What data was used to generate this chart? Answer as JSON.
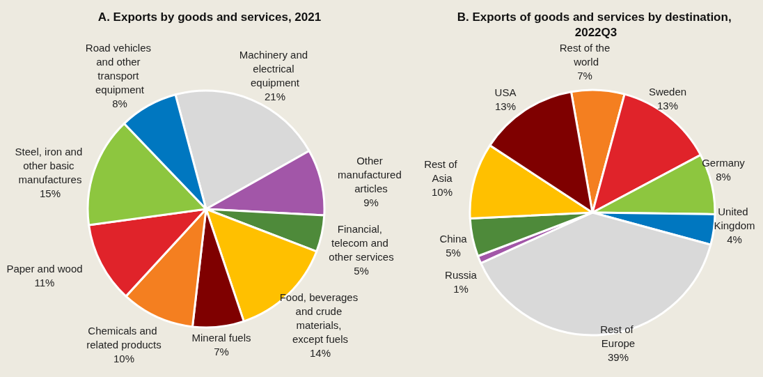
{
  "chart_data": [
    {
      "type": "pie",
      "title": "A. Exports by goods and services, 2021",
      "categories": [
        "Machinery and electrical equipment",
        "Other manufactured articles",
        "Financial, telecom and other services",
        "Food, beverages and crude materials, except fuels",
        "Mineral fuels",
        "Chemicals and related products",
        "Paper and wood",
        "Steel, iron and other basic manufactures",
        "Road vehicles and other transport equipment"
      ],
      "values": [
        21,
        9,
        5,
        14,
        7,
        10,
        11,
        15,
        8
      ],
      "value_labels": [
        "21%",
        "9%",
        "5%",
        "14%",
        "7%",
        "10%",
        "11%",
        "15%",
        "8%"
      ],
      "colors": [
        "#d9d9d9",
        "#a256a8",
        "#4e8a3a",
        "#ffc000",
        "#7f0000",
        "#f47f20",
        "#e0232a",
        "#8dc63f",
        "#0077c0"
      ],
      "legend": false
    },
    {
      "type": "pie",
      "title": "B. Exports of goods and services by destination, 2022Q3",
      "categories": [
        "Rest of the world",
        "Sweden",
        "Germany",
        "United Kingdom",
        "Rest of Europe",
        "Russia",
        "China",
        "Rest of Asia",
        "USA"
      ],
      "values": [
        7,
        13,
        8,
        4,
        39,
        1,
        5,
        10,
        13
      ],
      "value_labels": [
        "7%",
        "13%",
        "8%",
        "4%",
        "39%",
        "1%",
        "5%",
        "10%",
        "13%"
      ],
      "colors": [
        "#f47f20",
        "#e0232a",
        "#8dc63f",
        "#0077c0",
        "#d9d9d9",
        "#a256a8",
        "#4e8a3a",
        "#ffc000",
        "#7f0000"
      ],
      "legend": false
    }
  ]
}
